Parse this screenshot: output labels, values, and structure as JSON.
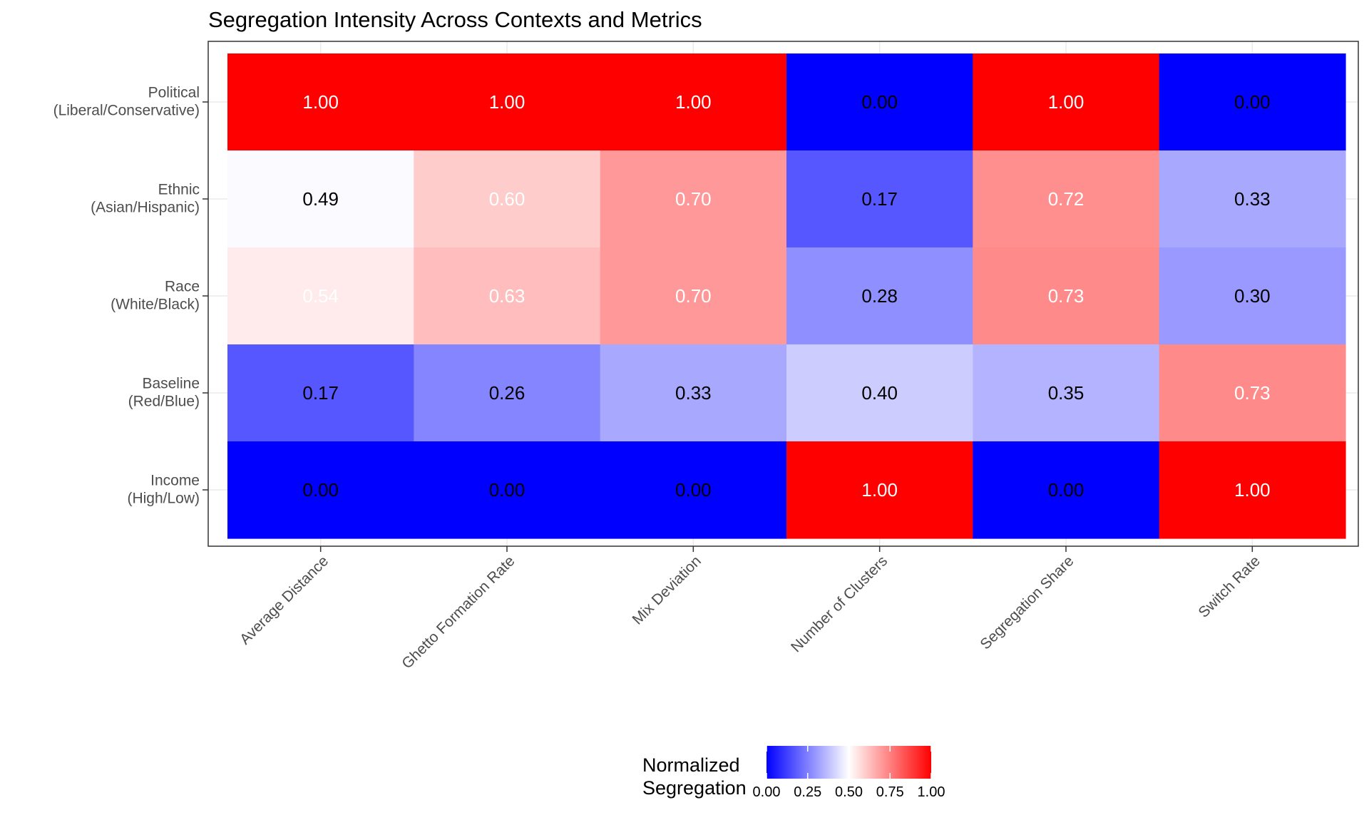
{
  "chart_data": {
    "type": "heatmap",
    "title": "Segregation Intensity Across Contexts and Metrics",
    "xlabel": "",
    "ylabel": "",
    "x_categories": [
      "Average Distance",
      "Ghetto Formation Rate",
      "Mix Deviation",
      "Number of Clusters",
      "Segregation Share",
      "Switch Rate"
    ],
    "y_categories": [
      [
        "Political",
        "(Liberal/Conservative)"
      ],
      [
        "Ethnic",
        "(Asian/Hispanic)"
      ],
      [
        "Race",
        "(White/Black)"
      ],
      [
        "Baseline",
        "(Red/Blue)"
      ],
      [
        "Income",
        "(High/Low)"
      ]
    ],
    "values": [
      [
        1.0,
        1.0,
        1.0,
        0.0,
        1.0,
        0.0
      ],
      [
        0.49,
        0.6,
        0.7,
        0.17,
        0.72,
        0.33
      ],
      [
        0.54,
        0.63,
        0.7,
        0.28,
        0.73,
        0.3
      ],
      [
        0.17,
        0.26,
        0.33,
        0.4,
        0.35,
        0.73
      ],
      [
        0.0,
        0.0,
        0.0,
        1.0,
        0.0,
        1.0
      ]
    ],
    "value_format": "0.00",
    "grid": true,
    "legend": {
      "title": [
        "Normalized",
        "Segregation"
      ],
      "position": "bottom",
      "range": [
        0,
        1
      ],
      "ticks": [
        "0.00",
        "0.25",
        "0.50",
        "0.75",
        "1.00"
      ],
      "colors": {
        "low": "#0000ff",
        "mid": "#ffffff",
        "high": "#ff0000"
      }
    },
    "label_colors": {
      "dark": "#000000",
      "light": "#ffffff"
    }
  }
}
